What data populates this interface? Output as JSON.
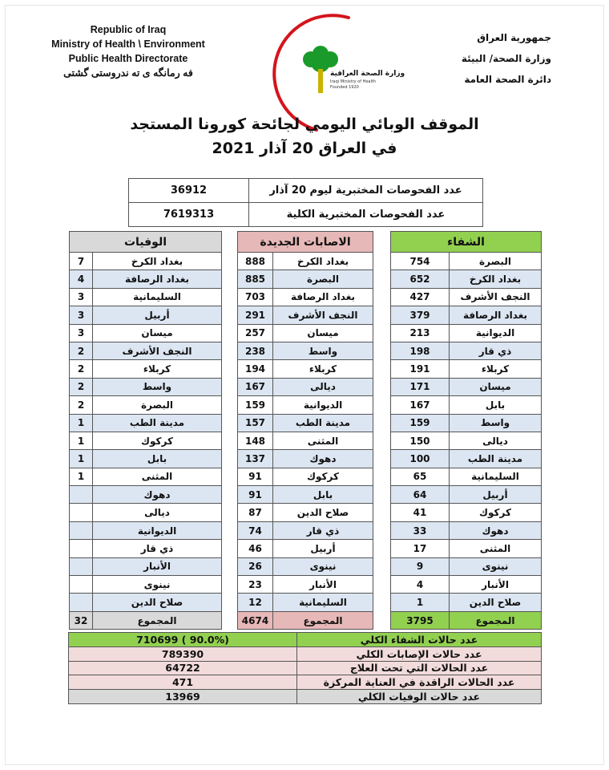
{
  "header": {
    "en_lines": [
      "Republic of Iraq",
      "Ministry of Health \\ Environment",
      "Public Health Directorate",
      "فه رمانگه ى ته ندروستى گشتى"
    ],
    "ar_lines": [
      "جمهورية العراق",
      "وزارة الصحة/ البيئة",
      "دائرة الصحة العامة"
    ],
    "logo_text": [
      "وزارة الصحة العراقية",
      "Iraqi Ministry of Health",
      "Founded 1920"
    ]
  },
  "title": {
    "line1": "الموقف الوبائي اليومي لجائحة كورونا المستجد",
    "line2": "في العراق  20  آذار  2021"
  },
  "tests": [
    {
      "label": "عدد الفحوصات المختبرية  ليوم 20 آذار",
      "value": "36912"
    },
    {
      "label": "عدد الفحوصات المختبرية الكلية",
      "value": "7619313"
    }
  ],
  "colors": {
    "recovery": "#92d050",
    "cases": "#e6b8b7",
    "deaths": "#d9d9d9",
    "alt_row": "#dce6f2",
    "pink_row": "#f2dcdb"
  },
  "deaths": {
    "title": "الوفيات",
    "total_label": "المجموع",
    "total": "32",
    "rows": [
      [
        "بغداد الكرخ",
        "7"
      ],
      [
        "بغداد الرصافة",
        "4"
      ],
      [
        "السليمانية",
        "3"
      ],
      [
        "أربيل",
        "3"
      ],
      [
        "ميسان",
        "3"
      ],
      [
        "النجف الأشرف",
        "2"
      ],
      [
        "كربلاء",
        "2"
      ],
      [
        "واسط",
        "2"
      ],
      [
        "البصرة",
        "2"
      ],
      [
        "مدينة الطب",
        "1"
      ],
      [
        "كركوك",
        "1"
      ],
      [
        "بابل",
        "1"
      ],
      [
        "المثنى",
        "1"
      ],
      [
        "دهوك",
        ""
      ],
      [
        "ديالى",
        ""
      ],
      [
        "الديوانية",
        ""
      ],
      [
        "ذي قار",
        ""
      ],
      [
        "الأنبار",
        ""
      ],
      [
        "نينوى",
        ""
      ],
      [
        "صلاح الدين",
        ""
      ]
    ]
  },
  "cases": {
    "title": "الاصابات الجديدة",
    "total_label": "المجموع",
    "total": "4674",
    "rows": [
      [
        "بغداد الكرخ",
        "888"
      ],
      [
        "البصرة",
        "885"
      ],
      [
        "بغداد الرصافة",
        "703"
      ],
      [
        "النجف الأشرف",
        "291"
      ],
      [
        "ميسان",
        "257"
      ],
      [
        "واسط",
        "238"
      ],
      [
        "كربلاء",
        "194"
      ],
      [
        "ديالى",
        "167"
      ],
      [
        "الديوانية",
        "159"
      ],
      [
        "مدينة الطب",
        "157"
      ],
      [
        "المثنى",
        "148"
      ],
      [
        "دهوك",
        "137"
      ],
      [
        "كركوك",
        "91"
      ],
      [
        "بابل",
        "91"
      ],
      [
        "صلاح الدين",
        "87"
      ],
      [
        "ذي قار",
        "74"
      ],
      [
        "أربيل",
        "46"
      ],
      [
        "نينوى",
        "26"
      ],
      [
        "الأنبار",
        "23"
      ],
      [
        "السليمانية",
        "12"
      ]
    ]
  },
  "recovery": {
    "title": "الشفاء",
    "total_label": "المجموع",
    "total": "3795",
    "rows": [
      [
        "البصرة",
        "754"
      ],
      [
        "بغداد الكرخ",
        "652"
      ],
      [
        "النجف الأشرف",
        "427"
      ],
      [
        "بغداد الرصافة",
        "379"
      ],
      [
        "الديوانية",
        "213"
      ],
      [
        "ذي قار",
        "198"
      ],
      [
        "كربلاء",
        "191"
      ],
      [
        "ميسان",
        "171"
      ],
      [
        "بابل",
        "167"
      ],
      [
        "واسط",
        "159"
      ],
      [
        "ديالى",
        "150"
      ],
      [
        "مدينة الطب",
        "100"
      ],
      [
        "السليمانية",
        "65"
      ],
      [
        "أربيل",
        "64"
      ],
      [
        "كركوك",
        "41"
      ],
      [
        "دهوك",
        "33"
      ],
      [
        "المثنى",
        "17"
      ],
      [
        "نينوى",
        "9"
      ],
      [
        "الأنبار",
        "4"
      ],
      [
        "صلاح الدين",
        "1"
      ]
    ]
  },
  "summary": [
    {
      "label": "عدد حالات الشفاء الكلي",
      "value": "(90.0% )   710699"
    },
    {
      "label": "عدد حالات الإصابات الكلي",
      "value": "789390"
    },
    {
      "label": "عدد الحالات التي تحت العلاج",
      "value": "64722"
    },
    {
      "label": "عدد الحالات الراقدة في العناية المركزة",
      "value": "471"
    },
    {
      "label": "عدد حالات الوفيات الكلي",
      "value": "13969"
    }
  ]
}
